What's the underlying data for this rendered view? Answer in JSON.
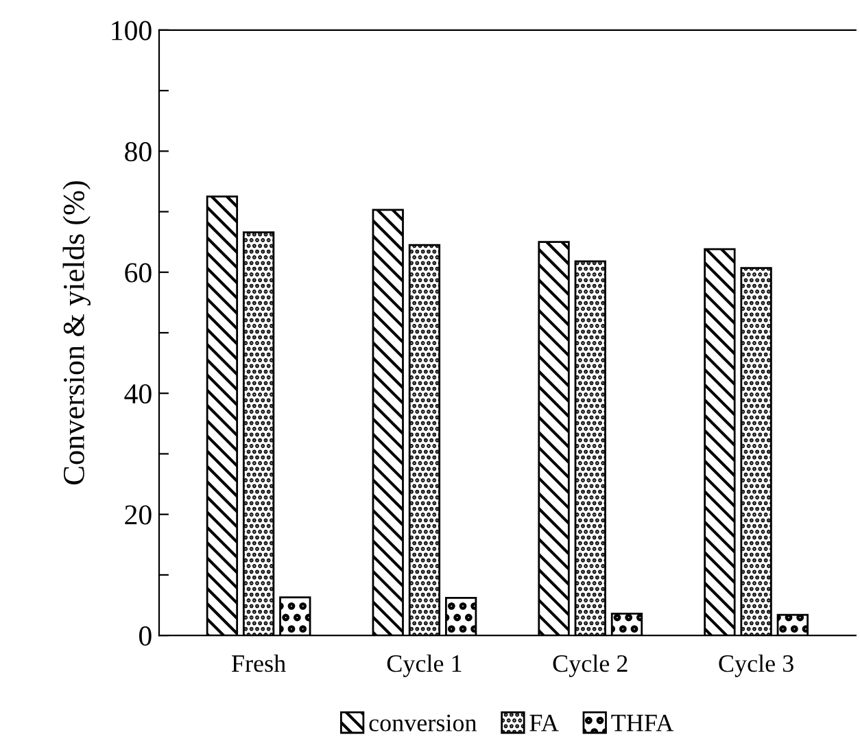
{
  "chart_data": {
    "type": "bar",
    "ylabel": "Conversion & yields (%)",
    "categories": [
      "Fresh",
      "Cycle 1",
      "Cycle 2",
      "Cycle 3"
    ],
    "series": [
      {
        "name": "conversion",
        "color": "#000000",
        "values": [
          72.5,
          70.3,
          65.0,
          63.8
        ]
      },
      {
        "name": "FA",
        "color": "#000000",
        "values": [
          66.6,
          64.5,
          61.8,
          60.7
        ]
      },
      {
        "name": "THFA",
        "color": "#000000",
        "values": [
          6.3,
          6.2,
          3.6,
          3.4
        ]
      }
    ],
    "ylim": [
      0,
      100
    ],
    "yticks": [
      0,
      {
        "value": 10,
        "label": null
      },
      20,
      {
        "value": 30,
        "label": null
      },
      40,
      {
        "value": 50,
        "label": null
      },
      60,
      {
        "value": 70,
        "label": null
      },
      80,
      {
        "value": 90,
        "label": null
      },
      100
    ],
    "grid": false,
    "legend": "bottom"
  }
}
